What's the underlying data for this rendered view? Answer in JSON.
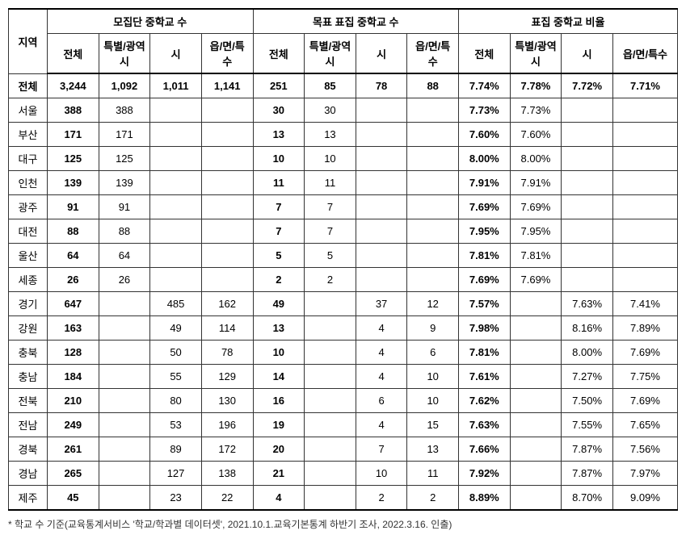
{
  "headers": {
    "region": "지역",
    "group1": "모집단 중학교 수",
    "group2": "목표 표집 중학교 수",
    "group3": "표집 중학교 비율",
    "sub_total": "전체",
    "sub_metro": "특별/광역시",
    "sub_city": "시",
    "sub_rural": "읍/면/특수"
  },
  "rows": [
    {
      "region": "전체",
      "p_total": "3,244",
      "p_metro": "1,092",
      "p_city": "1,011",
      "p_rural": "1,141",
      "t_total": "251",
      "t_metro": "85",
      "t_city": "78",
      "t_rural": "88",
      "r_total": "7.74%",
      "r_metro": "7.78%",
      "r_city": "7.72%",
      "r_rural": "7.71%",
      "bold": true
    },
    {
      "region": "서울",
      "p_total": "388",
      "p_metro": "388",
      "p_city": "",
      "p_rural": "",
      "t_total": "30",
      "t_metro": "30",
      "t_city": "",
      "t_rural": "",
      "r_total": "7.73%",
      "r_metro": "7.73%",
      "r_city": "",
      "r_rural": ""
    },
    {
      "region": "부산",
      "p_total": "171",
      "p_metro": "171",
      "p_city": "",
      "p_rural": "",
      "t_total": "13",
      "t_metro": "13",
      "t_city": "",
      "t_rural": "",
      "r_total": "7.60%",
      "r_metro": "7.60%",
      "r_city": "",
      "r_rural": ""
    },
    {
      "region": "대구",
      "p_total": "125",
      "p_metro": "125",
      "p_city": "",
      "p_rural": "",
      "t_total": "10",
      "t_metro": "10",
      "t_city": "",
      "t_rural": "",
      "r_total": "8.00%",
      "r_metro": "8.00%",
      "r_city": "",
      "r_rural": ""
    },
    {
      "region": "인천",
      "p_total": "139",
      "p_metro": "139",
      "p_city": "",
      "p_rural": "",
      "t_total": "11",
      "t_metro": "11",
      "t_city": "",
      "t_rural": "",
      "r_total": "7.91%",
      "r_metro": "7.91%",
      "r_city": "",
      "r_rural": ""
    },
    {
      "region": "광주",
      "p_total": "91",
      "p_metro": "91",
      "p_city": "",
      "p_rural": "",
      "t_total": "7",
      "t_metro": "7",
      "t_city": "",
      "t_rural": "",
      "r_total": "7.69%",
      "r_metro": "7.69%",
      "r_city": "",
      "r_rural": ""
    },
    {
      "region": "대전",
      "p_total": "88",
      "p_metro": "88",
      "p_city": "",
      "p_rural": "",
      "t_total": "7",
      "t_metro": "7",
      "t_city": "",
      "t_rural": "",
      "r_total": "7.95%",
      "r_metro": "7.95%",
      "r_city": "",
      "r_rural": ""
    },
    {
      "region": "울산",
      "p_total": "64",
      "p_metro": "64",
      "p_city": "",
      "p_rural": "",
      "t_total": "5",
      "t_metro": "5",
      "t_city": "",
      "t_rural": "",
      "r_total": "7.81%",
      "r_metro": "7.81%",
      "r_city": "",
      "r_rural": ""
    },
    {
      "region": "세종",
      "p_total": "26",
      "p_metro": "26",
      "p_city": "",
      "p_rural": "",
      "t_total": "2",
      "t_metro": "2",
      "t_city": "",
      "t_rural": "",
      "r_total": "7.69%",
      "r_metro": "7.69%",
      "r_city": "",
      "r_rural": ""
    },
    {
      "region": "경기",
      "p_total": "647",
      "p_metro": "",
      "p_city": "485",
      "p_rural": "162",
      "t_total": "49",
      "t_metro": "",
      "t_city": "37",
      "t_rural": "12",
      "r_total": "7.57%",
      "r_metro": "",
      "r_city": "7.63%",
      "r_rural": "7.41%"
    },
    {
      "region": "강원",
      "p_total": "163",
      "p_metro": "",
      "p_city": "49",
      "p_rural": "114",
      "t_total": "13",
      "t_metro": "",
      "t_city": "4",
      "t_rural": "9",
      "r_total": "7.98%",
      "r_metro": "",
      "r_city": "8.16%",
      "r_rural": "7.89%"
    },
    {
      "region": "충북",
      "p_total": "128",
      "p_metro": "",
      "p_city": "50",
      "p_rural": "78",
      "t_total": "10",
      "t_metro": "",
      "t_city": "4",
      "t_rural": "6",
      "r_total": "7.81%",
      "r_metro": "",
      "r_city": "8.00%",
      "r_rural": "7.69%"
    },
    {
      "region": "충남",
      "p_total": "184",
      "p_metro": "",
      "p_city": "55",
      "p_rural": "129",
      "t_total": "14",
      "t_metro": "",
      "t_city": "4",
      "t_rural": "10",
      "r_total": "7.61%",
      "r_metro": "",
      "r_city": "7.27%",
      "r_rural": "7.75%"
    },
    {
      "region": "전북",
      "p_total": "210",
      "p_metro": "",
      "p_city": "80",
      "p_rural": "130",
      "t_total": "16",
      "t_metro": "",
      "t_city": "6",
      "t_rural": "10",
      "r_total": "7.62%",
      "r_metro": "",
      "r_city": "7.50%",
      "r_rural": "7.69%"
    },
    {
      "region": "전남",
      "p_total": "249",
      "p_metro": "",
      "p_city": "53",
      "p_rural": "196",
      "t_total": "19",
      "t_metro": "",
      "t_city": "4",
      "t_rural": "15",
      "r_total": "7.63%",
      "r_metro": "",
      "r_city": "7.55%",
      "r_rural": "7.65%"
    },
    {
      "region": "경북",
      "p_total": "261",
      "p_metro": "",
      "p_city": "89",
      "p_rural": "172",
      "t_total": "20",
      "t_metro": "",
      "t_city": "7",
      "t_rural": "13",
      "r_total": "7.66%",
      "r_metro": "",
      "r_city": "7.87%",
      "r_rural": "7.56%"
    },
    {
      "region": "경남",
      "p_total": "265",
      "p_metro": "",
      "p_city": "127",
      "p_rural": "138",
      "t_total": "21",
      "t_metro": "",
      "t_city": "10",
      "t_rural": "11",
      "r_total": "7.92%",
      "r_metro": "",
      "r_city": "7.87%",
      "r_rural": "7.97%"
    },
    {
      "region": "제주",
      "p_total": "45",
      "p_metro": "",
      "p_city": "23",
      "p_rural": "22",
      "t_total": "4",
      "t_metro": "",
      "t_city": "2",
      "t_rural": "2",
      "r_total": "8.89%",
      "r_metro": "",
      "r_city": "8.70%",
      "r_rural": "9.09%"
    }
  ],
  "footnote": "* 학교 수 기준(교육통계서비스 '학교/학과별 데이터셋', 2021.10.1.교육기본통계 하반기 조사, 2022.3.16. 인출)"
}
